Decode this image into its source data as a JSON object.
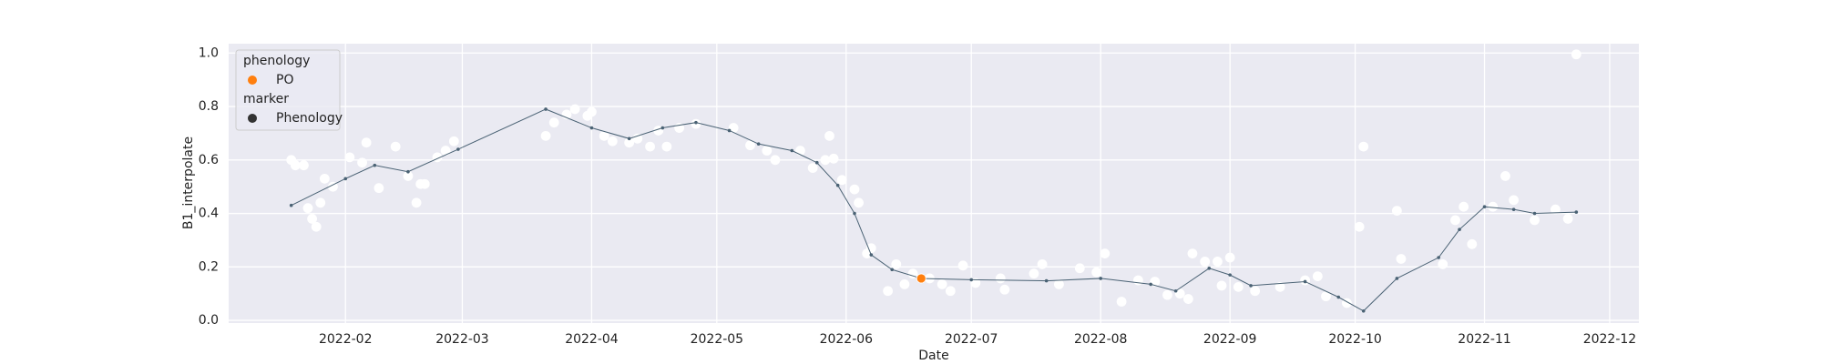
{
  "chart_data": {
    "type": "scatter",
    "xlabel": "Date",
    "ylabel": "B1_interpolate",
    "xlim": [
      4,
      342
    ],
    "ylim": [
      -0.01,
      1.035
    ],
    "xticks": [
      {
        "value": 32,
        "label": "2022-02"
      },
      {
        "value": 60,
        "label": "2022-03"
      },
      {
        "value": 91,
        "label": "2022-04"
      },
      {
        "value": 121,
        "label": "2022-05"
      },
      {
        "value": 152,
        "label": "2022-06"
      },
      {
        "value": 182,
        "label": "2022-07"
      },
      {
        "value": 213,
        "label": "2022-08"
      },
      {
        "value": 244,
        "label": "2022-09"
      },
      {
        "value": 274,
        "label": "2022-10"
      },
      {
        "value": 305,
        "label": "2022-11"
      },
      {
        "value": 335,
        "label": "2022-12"
      }
    ],
    "yticks": [
      {
        "value": 0,
        "label": "0.0"
      },
      0.2,
      0.4,
      0.6,
      0.8,
      {
        "value": 1,
        "label": "1.0"
      }
    ],
    "grid": true,
    "series": [
      {
        "type": "scatter",
        "color": "#ffffff",
        "x": [
          19,
          20,
          22,
          23,
          24,
          25,
          26,
          27,
          29,
          33,
          36,
          37,
          40,
          44,
          47,
          49,
          50,
          51,
          54,
          56,
          58,
          80,
          82,
          85,
          87,
          90,
          91,
          94,
          96,
          100,
          102,
          105,
          107,
          109,
          112,
          116,
          125,
          129,
          133,
          135,
          141,
          144,
          147,
          148,
          149,
          151,
          154,
          155,
          157,
          158,
          162,
          164,
          166,
          168,
          172,
          175,
          177,
          180,
          183,
          189,
          190,
          197,
          199,
          203,
          208,
          212,
          214,
          218,
          222,
          226,
          229,
          232,
          234,
          235,
          238,
          241,
          242,
          244,
          246,
          250,
          256,
          262,
          265,
          267,
          272,
          275,
          276,
          284,
          285,
          295,
          298,
          300,
          302,
          307,
          310,
          312,
          317,
          322,
          325,
          327
        ],
        "values": [
          0.6,
          0.58,
          0.58,
          0.42,
          0.38,
          0.35,
          0.44,
          0.53,
          0.5,
          0.61,
          0.59,
          0.665,
          0.495,
          0.65,
          0.54,
          0.44,
          0.51,
          0.51,
          0.61,
          0.635,
          0.67,
          0.69,
          0.74,
          0.77,
          0.79,
          0.765,
          0.78,
          0.69,
          0.67,
          0.665,
          0.68,
          0.65,
          0.71,
          0.65,
          0.72,
          0.735,
          0.72,
          0.655,
          0.635,
          0.6,
          0.635,
          0.57,
          0.6,
          0.69,
          0.605,
          0.525,
          0.49,
          0.44,
          0.25,
          0.27,
          0.11,
          0.21,
          0.135,
          0.175,
          0.157,
          0.135,
          0.11,
          0.205,
          0.14,
          0.157,
          0.115,
          0.175,
          0.21,
          0.135,
          0.195,
          0.18,
          0.25,
          0.07,
          0.15,
          0.145,
          0.095,
          0.1,
          0.08,
          0.25,
          0.22,
          0.22,
          0.13,
          0.235,
          0.125,
          0.11,
          0.125,
          0.15,
          0.165,
          0.09,
          0.065,
          0.35,
          0.65,
          0.41,
          0.23,
          0.21,
          0.375,
          0.425,
          0.285,
          0.425,
          0.54,
          0.45,
          0.375,
          0.415,
          0.38,
          0.995
        ]
      },
      {
        "type": "line",
        "color": "#4a6274",
        "x": [
          19,
          32,
          39,
          47,
          59,
          80,
          91,
          100,
          108,
          116,
          124,
          131,
          139,
          145,
          150,
          154,
          158,
          163,
          170,
          182,
          200,
          213,
          225,
          231,
          239,
          244,
          249,
          262,
          270,
          276,
          284,
          294,
          299,
          305,
          312,
          317,
          327
        ],
        "values": [
          0.43,
          0.53,
          0.58,
          0.556,
          0.64,
          0.79,
          0.72,
          0.68,
          0.72,
          0.74,
          0.71,
          0.66,
          0.635,
          0.59,
          0.505,
          0.4,
          0.245,
          0.19,
          0.157,
          0.152,
          0.148,
          0.157,
          0.135,
          0.11,
          0.195,
          0.17,
          0.13,
          0.145,
          0.087,
          0.035,
          0.157,
          0.235,
          0.34,
          0.425,
          0.415,
          0.4,
          0.405
        ]
      },
      {
        "type": "scatter",
        "color": "#ff7f0e",
        "x": [
          170
        ],
        "values": [
          0.157
        ]
      }
    ],
    "legend": {
      "corner": "upper left",
      "groups": [
        {
          "title": "phenology",
          "entries": [
            {
              "name": "PO",
              "color": "#ff7f0e"
            }
          ]
        },
        {
          "title": "marker",
          "entries": [
            {
              "name": "Phenology",
              "color": "#333333"
            }
          ]
        }
      ]
    }
  }
}
